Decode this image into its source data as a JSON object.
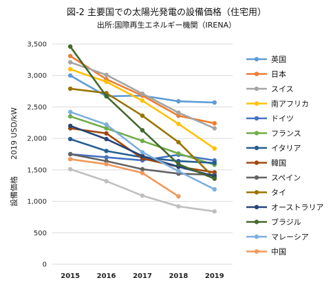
{
  "chart_data": {
    "type": "line",
    "title": "図-2  主要国での太陽光発電の設備価格（住宅用）",
    "subtitle": "出所:国際再生エネルギー機関（IRENA）",
    "ylabel_main": "設備価格",
    "ylabel_unit": "2019 USD/kW",
    "categories": [
      "2015",
      "2016",
      "2017",
      "2018",
      "2019"
    ],
    "yticks": [
      "0",
      "500",
      "1,000",
      "1,500",
      "2,000",
      "2,500",
      "3,000",
      "3,500"
    ],
    "ylim": [
      0,
      3500
    ],
    "grid": true,
    "legend_position": "right",
    "series": [
      {
        "name": "英国",
        "color": "#5B9BD5",
        "values": [
          3000,
          2670,
          2680,
          2590,
          2570
        ]
      },
      {
        "name": "日本",
        "color": "#ED7D31",
        "values": [
          3310,
          2940,
          2680,
          2360,
          2240
        ]
      },
      {
        "name": "スイス",
        "color": "#A5A5A5",
        "values": [
          3210,
          3010,
          2710,
          2410,
          2160
        ]
      },
      {
        "name": "南アフリカ",
        "color": "#FFC000",
        "values": [
          3100,
          2900,
          2600,
          2230,
          1840
        ]
      },
      {
        "name": "ドイツ",
        "color": "#4472C4",
        "values": [
          1750,
          1700,
          1650,
          1740,
          1650
        ]
      },
      {
        "name": "フランス",
        "color": "#70AD47",
        "values": [
          2350,
          2160,
          1960,
          1760,
          1580
        ]
      },
      {
        "name": "イタリア",
        "color": "#255E91",
        "values": [
          1990,
          1800,
          1700,
          1640,
          1610
        ]
      },
      {
        "name": "韓国",
        "color": "#9E480E",
        "values": [
          2160,
          2080,
          1680,
          1550,
          1460
        ]
      },
      {
        "name": "スペイン",
        "color": "#636363",
        "values": [
          1750,
          1640,
          1510,
          1440,
          1420
        ]
      },
      {
        "name": "タイ",
        "color": "#997300",
        "values": [
          2790,
          2720,
          2360,
          1940,
          1370
        ]
      },
      {
        "name": "オーストラリア",
        "color": "#264478",
        "values": [
          2200,
          1990,
          1720,
          1550,
          1400
        ]
      },
      {
        "name": "ブラジル",
        "color": "#43682B",
        "values": [
          3460,
          2670,
          2130,
          1590,
          1360
        ]
      },
      {
        "name": "マレーシア",
        "color": "#7CAFDD",
        "values": [
          2420,
          2220,
          1780,
          1480,
          1190
        ]
      },
      {
        "name": "中国",
        "color": "#F1975A",
        "values": [
          1670,
          1590,
          1450,
          1080,
          null
        ]
      },
      {
        "name": "",
        "color": "#BFBFBF",
        "values": [
          1510,
          1320,
          1090,
          920,
          840
        ]
      }
    ]
  }
}
